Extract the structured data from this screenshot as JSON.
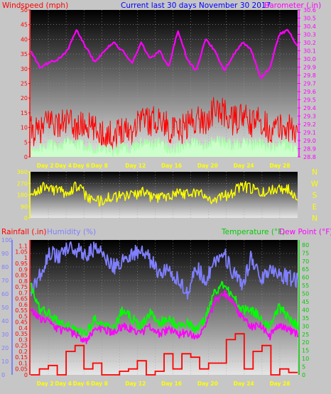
{
  "colors": {
    "wind": "#ff0000",
    "gust": "#ff0000",
    "baro": "#ff00ff",
    "dir": "#ffff00",
    "hum": "#7f7fff",
    "temp": "#00ff00",
    "dew": "#ff00ff",
    "rain": "#ff0000",
    "title": "#0000ff",
    "dayLabel": "#ffff00",
    "frame": "#c6c6c6"
  },
  "header": {
    "wind_label": "Windspeed (mph)",
    "title": "Current last 30 days November 30 2017",
    "baro_label": "Barometer (.in)"
  },
  "header2": {
    "rain_label": "Rainfall (.in)",
    "hum_label": "Humidity (%)",
    "temp_label": "Temperature (°F)",
    "dew_label": "Dew Point (°F)"
  },
  "compass": [
    "N",
    "W",
    "S",
    "E",
    "N"
  ],
  "day_labels": [
    "Day 2",
    "Day 4",
    "Day 6",
    "Day 8",
    "Day 12",
    "Day 16",
    "Day 20",
    "Day 24",
    "Day 28"
  ],
  "chart_data": [
    {
      "type": "line",
      "name": "wind-barometer",
      "x": [
        1,
        2,
        3,
        4,
        5,
        6,
        7,
        8,
        9,
        10,
        11,
        12,
        13,
        14,
        15,
        16,
        17,
        18,
        19,
        20,
        21,
        22,
        23,
        24,
        25,
        26,
        27,
        28,
        29,
        30
      ],
      "ylabel_left": "Windspeed (mph)",
      "ylabel_right": "Barometer (.in)",
      "yticks_left": [
        "0",
        "5",
        "10",
        "15",
        "20",
        "25",
        "30",
        "35",
        "40",
        "45",
        "50"
      ],
      "yticks_right": [
        "28.8",
        "28.9",
        "29.0",
        "29.1",
        "29.2",
        "29.3",
        "29.4",
        "29.5",
        "29.6",
        "29.7",
        "29.8",
        "29.9",
        "30.0",
        "30.1",
        "30.2",
        "30.3",
        "30.4",
        "30.5",
        "30.6"
      ],
      "ylim_left": [
        0,
        50
      ],
      "ylim_right": [
        28.8,
        30.6
      ],
      "series": [
        {
          "key": "gust",
          "values": [
            9,
            8,
            13,
            11,
            12,
            10,
            11,
            9,
            8,
            7,
            10,
            9,
            14,
            12,
            13,
            10,
            8,
            11,
            13,
            12,
            16,
            15,
            12,
            14,
            11,
            13,
            9,
            10,
            10,
            8
          ]
        },
        {
          "key": "wind",
          "values": [
            3,
            3,
            4,
            4,
            5,
            4,
            4,
            3,
            3,
            2,
            3,
            3,
            5,
            4,
            5,
            3,
            3,
            4,
            5,
            4,
            6,
            5,
            4,
            5,
            4,
            5,
            3,
            4,
            4,
            3
          ]
        },
        {
          "key": "baro",
          "values": [
            30.1,
            29.9,
            29.95,
            30.0,
            30.1,
            30.35,
            30.15,
            29.95,
            30.1,
            30.2,
            30.1,
            29.95,
            30.2,
            30.0,
            30.1,
            29.9,
            30.35,
            30.0,
            29.85,
            30.25,
            30.1,
            29.85,
            30.05,
            30.2,
            30.1,
            29.75,
            29.9,
            30.3,
            30.35,
            30.15
          ]
        }
      ]
    },
    {
      "type": "line",
      "name": "wind-direction",
      "x": [
        1,
        2,
        3,
        4,
        5,
        6,
        7,
        8,
        9,
        10,
        11,
        12,
        13,
        14,
        15,
        16,
        17,
        18,
        19,
        20,
        21,
        22,
        23,
        24,
        25,
        26,
        27,
        28,
        29,
        30
      ],
      "yticks": [
        "0",
        "90",
        "180",
        "270",
        "360"
      ],
      "ylim": [
        0,
        360
      ],
      "series": [
        {
          "key": "dir",
          "values": [
            190,
            230,
            240,
            210,
            200,
            250,
            180,
            120,
            150,
            160,
            170,
            180,
            200,
            170,
            160,
            180,
            200,
            190,
            210,
            160,
            150,
            170,
            200,
            250,
            230,
            190,
            210,
            240,
            220,
            180
          ]
        }
      ]
    },
    {
      "type": "line",
      "name": "rain-humidity-temperature-dewpoint",
      "x": [
        1,
        2,
        3,
        4,
        5,
        6,
        7,
        8,
        9,
        10,
        11,
        12,
        13,
        14,
        15,
        16,
        17,
        18,
        19,
        20,
        21,
        22,
        23,
        24,
        25,
        26,
        27,
        28,
        29,
        30
      ],
      "ylabel_rain": "Rainfall (.in)",
      "ylabel_hum": "Humidity (%)",
      "ylabel_right": "Temperature (°F) / Dew Point (°F)",
      "yticks_rain": [
        "0",
        "0.05",
        "0.1",
        "0.15",
        "0.2",
        "0.25",
        "0.3",
        "0.35",
        "0.4",
        "0.45",
        "0.5",
        "0.55",
        "0.6",
        "0.65",
        "0.7",
        "0.75",
        "0.8",
        "0.85",
        "0.9",
        "0.95",
        "1",
        "1.05",
        "1.1"
      ],
      "yticks_hum": [
        "0",
        "10",
        "20",
        "30",
        "40",
        "50",
        "60",
        "70",
        "80",
        "90",
        "100"
      ],
      "yticks_temp": [
        "0",
        "5",
        "10",
        "15",
        "20",
        "25",
        "30",
        "35",
        "40",
        "45",
        "50",
        "55",
        "60",
        "65",
        "70",
        "75",
        "80"
      ],
      "ylim_rain": [
        0,
        1.15
      ],
      "ylim_hum": [
        0,
        100
      ],
      "ylim_temp": [
        0,
        83
      ],
      "series": [
        {
          "key": "rain",
          "values": [
            0,
            0.05,
            0.08,
            0,
            0.2,
            0.25,
            0.05,
            0.1,
            0,
            0,
            0.03,
            0.05,
            0.12,
            0,
            0.03,
            0.18,
            0.05,
            0.18,
            0.15,
            0.05,
            0.1,
            0.1,
            0.3,
            0.35,
            0.05,
            0.2,
            0.25,
            0,
            0.05,
            0.02
          ]
        },
        {
          "key": "hum",
          "values": [
            60,
            75,
            90,
            88,
            95,
            92,
            90,
            93,
            88,
            80,
            85,
            90,
            92,
            85,
            75,
            80,
            70,
            60,
            80,
            70,
            85,
            90,
            75,
            65,
            88,
            70,
            80,
            75,
            72,
            70
          ]
        },
        {
          "key": "temp",
          "values": [
            55,
            40,
            38,
            32,
            30,
            28,
            25,
            35,
            30,
            28,
            40,
            35,
            30,
            38,
            32,
            35,
            30,
            32,
            28,
            35,
            52,
            55,
            48,
            40,
            40,
            35,
            28,
            42,
            35,
            30
          ]
        },
        {
          "key": "dew",
          "values": [
            40,
            35,
            32,
            28,
            27,
            25,
            20,
            30,
            28,
            26,
            30,
            28,
            26,
            30,
            25,
            28,
            25,
            26,
            24,
            30,
            45,
            50,
            44,
            35,
            30,
            30,
            24,
            30,
            28,
            25
          ]
        }
      ]
    }
  ]
}
